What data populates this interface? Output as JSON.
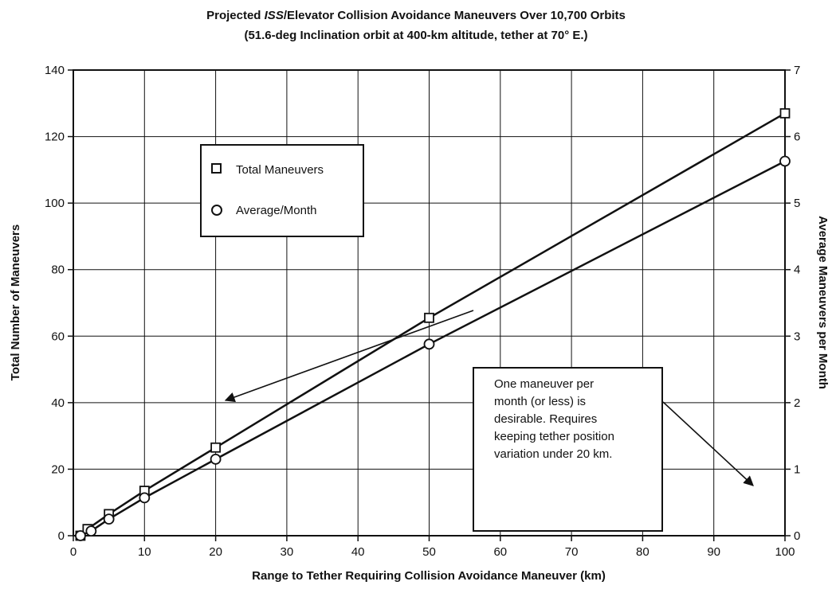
{
  "chart_data": {
    "type": "line",
    "title_line1_pre": "Projected ",
    "title_line1_em": "ISS",
    "title_line1_post": "/Elevator Collision Avoidance Maneuvers Over 10,700 Orbits",
    "title_line2": "(51.6-deg Inclination orbit at 400-km altitude, tether at 70° E.)",
    "xlabel": "Range to Tether Requiring Collision Avoidance Maneuver (km)",
    "ylabel_left": "Total Number of Maneuvers",
    "ylabel_right": "Average Maneuvers per Month",
    "xlim": [
      0,
      100
    ],
    "ylim_left": [
      0,
      140
    ],
    "ylim_right": [
      0,
      7
    ],
    "x_ticks": [
      "0",
      "10",
      "20",
      "30",
      "40",
      "50",
      "60",
      "70",
      "80",
      "90",
      "100"
    ],
    "y_left_ticks": [
      "0",
      "20",
      "40",
      "60",
      "80",
      "100",
      "120",
      "140"
    ],
    "y_right_ticks": [
      "0",
      "1",
      "2",
      "3",
      "4",
      "5",
      "6",
      "7"
    ],
    "grid": true,
    "legend_position": "top-left",
    "series": [
      {
        "name": "Total Maneuvers",
        "marker": "square",
        "axis": "left",
        "x": [
          1,
          2,
          5,
          10,
          20,
          50,
          100
        ],
        "y": [
          0,
          2,
          6.5,
          13.5,
          26.5,
          65.5,
          127
        ]
      },
      {
        "name": "Average/Month",
        "marker": "circle",
        "axis": "right",
        "x": [
          1,
          2.5,
          5,
          10,
          20,
          50,
          100
        ],
        "y": [
          0.0,
          0.07,
          0.25,
          0.57,
          1.15,
          2.88,
          5.63
        ]
      }
    ],
    "annotation": {
      "lines": [
        "One maneuver per",
        "month (or less) is",
        "desirable. Requires",
        "keeping tether position",
        "variation under 20 km."
      ],
      "arrow_targets": [
        {
          "x": 21,
          "y_right": 1.1
        },
        {
          "x": 98,
          "y_right": 1.1
        }
      ]
    }
  }
}
